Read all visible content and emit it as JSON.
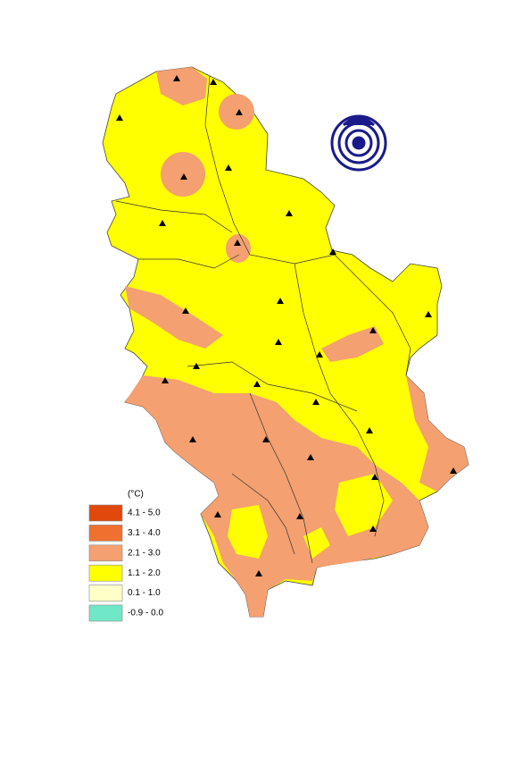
{
  "legend": {
    "title": "(°C)",
    "items": [
      {
        "label": "4.1 - 5.0",
        "color": "#e0480c"
      },
      {
        "label": "3.1 - 4.0",
        "color": "#f07030"
      },
      {
        "label": "2.1 - 3.0",
        "color": "#f4a070"
      },
      {
        "label": "1.1 - 2.0",
        "color": "#ffff00"
      },
      {
        "label": "0.1 - 1.0",
        "color": "#ffffc8"
      },
      {
        "label": "-0.9 - 0.0",
        "color": "#70e8c8"
      }
    ]
  }
}
